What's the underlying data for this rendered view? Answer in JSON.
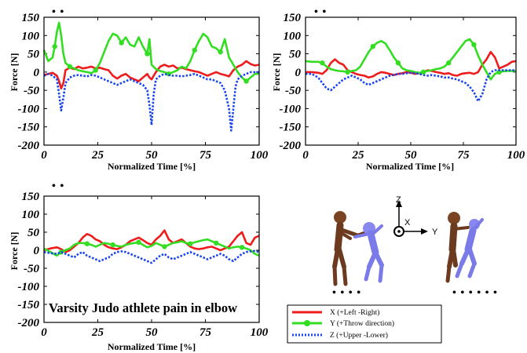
{
  "colors": {
    "x": "#ee1c1c",
    "y": "#33dd22",
    "z": "#1a44ee",
    "axis": "#000000",
    "body_left": "#6b3a1f",
    "body_right": "#7a7ae8"
  },
  "panel_header": "• •",
  "annotation": "Varsity Judo athlete pain in elbow",
  "legend": [
    {
      "label": "X (+Left -Right)",
      "series": "x"
    },
    {
      "label": "Y (+Throw direction)",
      "series": "y"
    },
    {
      "label": "Z (+Upper -Lower)",
      "series": "z"
    }
  ],
  "coord_axes": {
    "z": "Z",
    "x": "X",
    "y": "Y"
  },
  "pose_captions": [
    "• • • •",
    "• • • • • •"
  ],
  "chart_data": [
    {
      "type": "line",
      "xlabel": "Normalized Time [%]",
      "ylabel": "Force [N]",
      "xlim": [
        0,
        100
      ],
      "ylim": [
        -200,
        150
      ],
      "xticks": [
        0,
        25,
        50,
        75,
        100
      ],
      "yticks": [
        150,
        100,
        50,
        0,
        -50,
        -100,
        -150,
        -200
      ],
      "series": [
        {
          "key": "x",
          "x": [
            0,
            2,
            4,
            6,
            7,
            8,
            9,
            10,
            12,
            14,
            16,
            18,
            20,
            22,
            24,
            26,
            28,
            30,
            32,
            34,
            36,
            38,
            40,
            42,
            44,
            46,
            48,
            49,
            50,
            51,
            52,
            54,
            56,
            58,
            60,
            62,
            64,
            66,
            68,
            70,
            72,
            74,
            76,
            78,
            80,
            82,
            84,
            86,
            88,
            90,
            92,
            94,
            96,
            98,
            100
          ],
          "y": [
            -8,
            -5,
            -2,
            -10,
            -25,
            -45,
            -30,
            5,
            12,
            8,
            15,
            10,
            12,
            15,
            10,
            12,
            8,
            5,
            -10,
            -18,
            -10,
            -5,
            -15,
            -20,
            -25,
            -15,
            -5,
            -15,
            -20,
            -10,
            0,
            15,
            20,
            15,
            18,
            10,
            12,
            8,
            5,
            2,
            0,
            -5,
            -10,
            -5,
            0,
            -5,
            -8,
            -12,
            5,
            15,
            20,
            30,
            22,
            18,
            20
          ]
        },
        {
          "key": "y",
          "x": [
            0,
            2,
            4,
            5,
            6,
            7,
            8,
            9,
            10,
            12,
            14,
            16,
            18,
            20,
            22,
            24,
            26,
            28,
            30,
            32,
            34,
            36,
            38,
            40,
            42,
            44,
            46,
            48,
            49,
            50,
            52,
            54,
            56,
            58,
            60,
            62,
            64,
            66,
            68,
            70,
            72,
            74,
            76,
            78,
            80,
            82,
            84,
            86,
            88,
            90,
            92,
            94,
            96,
            98,
            100
          ],
          "y": [
            60,
            30,
            40,
            70,
            110,
            135,
            100,
            50,
            25,
            15,
            10,
            5,
            2,
            0,
            -3,
            5,
            25,
            55,
            85,
            105,
            100,
            80,
            95,
            75,
            70,
            95,
            70,
            50,
            90,
            20,
            8,
            3,
            0,
            -5,
            0,
            5,
            15,
            10,
            30,
            60,
            85,
            105,
            95,
            70,
            65,
            55,
            90,
            40,
            20,
            0,
            -15,
            -25,
            -15,
            -5,
            -5
          ]
        },
        {
          "key": "z",
          "x": [
            0,
            2,
            4,
            6,
            7,
            8,
            9,
            10,
            12,
            14,
            16,
            18,
            20,
            22,
            24,
            26,
            28,
            30,
            32,
            34,
            36,
            38,
            40,
            42,
            44,
            46,
            48,
            49,
            50,
            51,
            52,
            54,
            56,
            58,
            60,
            62,
            64,
            66,
            68,
            70,
            72,
            74,
            76,
            78,
            80,
            82,
            84,
            86,
            87,
            88,
            89,
            90,
            92,
            94,
            96,
            98,
            100
          ],
          "y": [
            -10,
            -5,
            -10,
            -20,
            -60,
            -105,
            -70,
            -30,
            -15,
            -10,
            -8,
            -10,
            -12,
            -8,
            -10,
            -15,
            -20,
            -25,
            -30,
            -35,
            -30,
            -25,
            -20,
            -25,
            -30,
            -35,
            -50,
            -90,
            -145,
            -60,
            -20,
            -10,
            -5,
            -8,
            -10,
            -10,
            -12,
            -10,
            -8,
            -5,
            -10,
            -15,
            -20,
            -20,
            -25,
            -30,
            -50,
            -100,
            -160,
            -100,
            -40,
            -20,
            -10,
            -5,
            0,
            0,
            0
          ]
        }
      ]
    },
    {
      "type": "line",
      "xlabel": "Normalized Time [%]",
      "ylabel": "Force [N]",
      "xlim": [
        0,
        100
      ],
      "ylim": [
        -200,
        150
      ],
      "xticks": [
        0,
        25,
        50,
        75,
        100
      ],
      "yticks": [
        150,
        100,
        50,
        0,
        -50,
        -100,
        -150,
        -200
      ],
      "series": [
        {
          "key": "x",
          "x": [
            0,
            3,
            6,
            8,
            10,
            12,
            14,
            16,
            18,
            20,
            22,
            24,
            26,
            28,
            30,
            32,
            34,
            36,
            38,
            40,
            42,
            44,
            46,
            48,
            50,
            52,
            54,
            56,
            58,
            60,
            62,
            64,
            66,
            68,
            70,
            72,
            74,
            76,
            78,
            80,
            82,
            84,
            86,
            88,
            90,
            92,
            94,
            96,
            98,
            100
          ],
          "y": [
            0,
            0,
            -2,
            -5,
            5,
            25,
            35,
            25,
            20,
            5,
            0,
            -5,
            -8,
            -10,
            -15,
            -12,
            -5,
            0,
            -2,
            -5,
            -8,
            -5,
            -3,
            0,
            -2,
            -5,
            -3,
            0,
            5,
            3,
            0,
            -2,
            -5,
            -3,
            -8,
            -10,
            -5,
            -3,
            -2,
            -5,
            0,
            20,
            35,
            55,
            40,
            10,
            15,
            20,
            28,
            30
          ]
        },
        {
          "key": "y",
          "x": [
            0,
            3,
            6,
            8,
            10,
            12,
            14,
            16,
            18,
            20,
            22,
            24,
            26,
            28,
            30,
            32,
            34,
            36,
            38,
            40,
            42,
            44,
            46,
            48,
            50,
            52,
            54,
            56,
            58,
            60,
            62,
            64,
            66,
            68,
            70,
            72,
            74,
            76,
            78,
            80,
            82,
            84,
            86,
            88,
            90,
            92,
            94,
            96,
            98,
            100
          ],
          "y": [
            30,
            28,
            28,
            25,
            15,
            8,
            5,
            3,
            2,
            0,
            3,
            5,
            15,
            35,
            55,
            70,
            80,
            85,
            78,
            60,
            40,
            25,
            10,
            5,
            3,
            0,
            -2,
            0,
            3,
            5,
            8,
            10,
            15,
            25,
            40,
            55,
            70,
            85,
            90,
            75,
            45,
            20,
            0,
            -20,
            -5,
            0,
            2,
            3,
            3,
            3
          ]
        },
        {
          "key": "z",
          "x": [
            0,
            3,
            6,
            8,
            10,
            12,
            14,
            16,
            18,
            20,
            22,
            24,
            26,
            28,
            30,
            32,
            34,
            36,
            38,
            40,
            42,
            44,
            46,
            48,
            50,
            52,
            54,
            56,
            58,
            60,
            62,
            64,
            66,
            68,
            70,
            72,
            74,
            76,
            78,
            80,
            82,
            84,
            86,
            88,
            90,
            92,
            94,
            96,
            98,
            100
          ],
          "y": [
            -5,
            -5,
            -15,
            -30,
            -45,
            -50,
            -40,
            -30,
            -20,
            -15,
            -10,
            -15,
            -20,
            -30,
            -35,
            -30,
            -25,
            -20,
            -15,
            -10,
            -8,
            -5,
            -5,
            -3,
            -2,
            -3,
            -5,
            -8,
            -10,
            -8,
            -10,
            -12,
            -15,
            -15,
            -18,
            -20,
            -25,
            -30,
            -40,
            -55,
            -80,
            -60,
            -20,
            0,
            5,
            5,
            5,
            5,
            5,
            5
          ]
        }
      ]
    },
    {
      "type": "line",
      "xlabel": "Normalized Time [%]",
      "ylabel": "Force [N]",
      "xlim": [
        0,
        100
      ],
      "ylim": [
        -200,
        150
      ],
      "xticks": [
        0,
        25,
        50,
        75,
        100
      ],
      "yticks": [
        150,
        100,
        50,
        0,
        -50,
        -100,
        -150,
        -200
      ],
      "series": [
        {
          "key": "x",
          "x": [
            0,
            3,
            6,
            8,
            10,
            12,
            14,
            16,
            18,
            20,
            22,
            24,
            26,
            28,
            30,
            32,
            34,
            36,
            38,
            40,
            42,
            44,
            46,
            48,
            50,
            52,
            54,
            56,
            58,
            60,
            62,
            64,
            66,
            68,
            70,
            72,
            74,
            76,
            78,
            80,
            82,
            84,
            86,
            88,
            90,
            92,
            94,
            96,
            98,
            100
          ],
          "y": [
            0,
            5,
            8,
            3,
            -5,
            0,
            10,
            20,
            35,
            45,
            40,
            30,
            25,
            15,
            8,
            5,
            3,
            8,
            15,
            25,
            30,
            35,
            28,
            20,
            15,
            30,
            40,
            55,
            30,
            20,
            25,
            30,
            20,
            10,
            5,
            3,
            5,
            8,
            10,
            5,
            0,
            5,
            10,
            25,
            40,
            50,
            20,
            15,
            35,
            40
          ]
        },
        {
          "key": "y",
          "x": [
            0,
            3,
            6,
            8,
            10,
            12,
            14,
            16,
            18,
            20,
            22,
            24,
            26,
            28,
            30,
            32,
            34,
            36,
            38,
            40,
            42,
            44,
            46,
            48,
            50,
            52,
            54,
            56,
            58,
            60,
            62,
            64,
            66,
            68,
            70,
            72,
            74,
            76,
            78,
            80,
            82,
            84,
            86,
            88,
            90,
            92,
            94,
            96,
            98,
            100
          ],
          "y": [
            5,
            -5,
            -15,
            -5,
            0,
            5,
            15,
            20,
            20,
            18,
            15,
            10,
            15,
            20,
            18,
            15,
            12,
            10,
            15,
            18,
            20,
            22,
            15,
            8,
            12,
            20,
            15,
            10,
            15,
            20,
            22,
            25,
            20,
            18,
            22,
            25,
            28,
            30,
            25,
            20,
            15,
            10,
            5,
            8,
            10,
            8,
            5,
            0,
            -10,
            -15
          ]
        },
        {
          "key": "z",
          "x": [
            0,
            3,
            6,
            8,
            10,
            12,
            14,
            16,
            18,
            20,
            22,
            24,
            26,
            28,
            30,
            32,
            34,
            36,
            38,
            40,
            42,
            44,
            46,
            48,
            50,
            52,
            54,
            56,
            58,
            60,
            62,
            64,
            66,
            68,
            70,
            72,
            74,
            76,
            78,
            80,
            82,
            84,
            86,
            88,
            90,
            92,
            94,
            96,
            98,
            100
          ],
          "y": [
            -5,
            -8,
            -10,
            -5,
            -10,
            -15,
            -20,
            -10,
            -5,
            -15,
            -20,
            -25,
            -30,
            -25,
            -20,
            -10,
            -5,
            -3,
            -5,
            -10,
            -15,
            -20,
            -25,
            -30,
            -35,
            -25,
            -15,
            -10,
            -20,
            -25,
            -20,
            -15,
            -10,
            -5,
            -10,
            -15,
            -20,
            -25,
            -20,
            -15,
            -10,
            -15,
            -25,
            -30,
            -20,
            -10,
            -5,
            -3,
            -2,
            -5
          ]
        }
      ]
    }
  ]
}
